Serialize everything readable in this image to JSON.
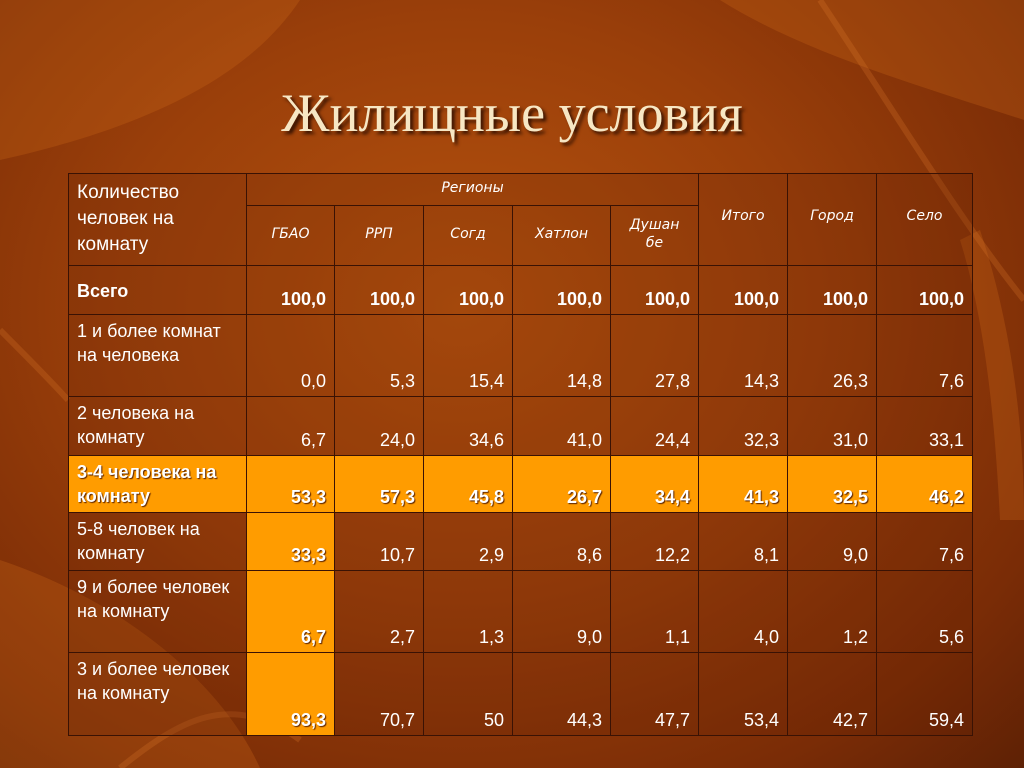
{
  "slide": {
    "title": "Жилищные условия"
  },
  "table": {
    "header": {
      "first": "Количество человек на комнату",
      "regions_group": "Регионы",
      "regions": [
        "ГБАО",
        "РРП",
        "Согд",
        "Хатлон",
        "Душан бе"
      ],
      "total": "Итого",
      "city": "Город",
      "village": "Село"
    },
    "rows": [
      {
        "label": "Всего",
        "values": [
          "100,0",
          "100,0",
          "100,0",
          "100,0",
          "100,0",
          "100,0",
          "100,0",
          "100,0"
        ]
      },
      {
        "label": "1 и более комнат на человека",
        "values": [
          "0,0",
          "5,3",
          "15,4",
          "14,8",
          "27,8",
          "14,3",
          "26,3",
          "7,6"
        ]
      },
      {
        "label": "2 человека на комнату",
        "values": [
          "6,7",
          "24,0",
          "34,6",
          "41,0",
          "24,4",
          "32,3",
          "31,0",
          "33,1"
        ]
      },
      {
        "label": "3-4 человека на комнату",
        "values": [
          "53,3",
          "57,3",
          "45,8",
          "26,7",
          "34,4",
          "41,3",
          "32,5",
          "46,2"
        ]
      },
      {
        "label": "5-8 человек на комнату",
        "values": [
          "33,3",
          "10,7",
          "2,9",
          "8,6",
          "12,2",
          "8,1",
          "9,0",
          "7,6"
        ]
      },
      {
        "label": "9 и более человек на комнату",
        "values": [
          "6,7",
          "2,7",
          "1,3",
          "9,0",
          "1,1",
          "4,0",
          "1,2",
          "5,6"
        ]
      },
      {
        "label": "3 и более человек на комнату",
        "values": [
          "93,3",
          "70,7",
          "50",
          "44,3",
          "47,7",
          "53,4",
          "42,7",
          "59,4"
        ]
      }
    ]
  },
  "colors": {
    "highlight": "#ff9c00",
    "background": "#9a3f0a",
    "title": "#f7e7c4"
  }
}
